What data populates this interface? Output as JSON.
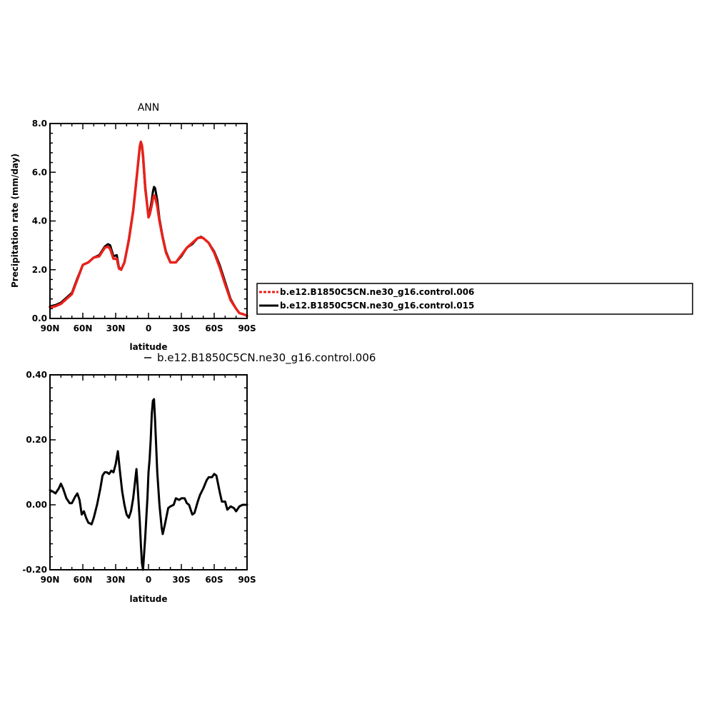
{
  "colors": {
    "run_006": "#e8221b",
    "run_015": "#000000",
    "axes": "#000000"
  },
  "chart_data": [
    {
      "type": "line",
      "title": "ANN",
      "xlabel": "latitude",
      "ylabel": "Precipitation rate (mm/day)",
      "xlim": [
        -90,
        90
      ],
      "ylim": [
        0,
        8
      ],
      "xticks": [
        -90,
        -60,
        -30,
        0,
        30,
        60,
        90
      ],
      "xtick_labels": [
        "90N",
        "60N",
        "30N",
        "0",
        "30S",
        "60S",
        "90S"
      ],
      "yticks": [
        0,
        2,
        4,
        6,
        8
      ],
      "ytick_labels": [
        "0.0",
        "2.0",
        "4.0",
        "6.0",
        "8.0"
      ],
      "legend_placement": "right",
      "x": [
        -90,
        -85,
        -80,
        -75,
        -70,
        -65,
        -60,
        -55,
        -50,
        -45,
        -40,
        -37,
        -35,
        -32,
        -29,
        -27,
        -25,
        -22,
        -18,
        -14,
        -11,
        -9,
        -8,
        -7,
        -6,
        -5,
        -3,
        0,
        1,
        3,
        4,
        5,
        6,
        8,
        10,
        13,
        16,
        20,
        25,
        30,
        35,
        40,
        45,
        48,
        50,
        55,
        60,
        65,
        70,
        75,
        80,
        83,
        86,
        88,
        90
      ],
      "series": [
        {
          "name": "b.e12.B1850C5CN.ne30_g16.control.006",
          "values": [
            0.45,
            0.5,
            0.6,
            0.8,
            1.0,
            1.6,
            2.2,
            2.3,
            2.5,
            2.55,
            2.9,
            2.95,
            2.85,
            2.45,
            2.45,
            2.05,
            2.0,
            2.3,
            3.2,
            4.4,
            5.7,
            6.6,
            7.05,
            7.25,
            7.1,
            6.7,
            5.4,
            4.15,
            4.25,
            4.65,
            4.9,
            5.05,
            5.0,
            4.6,
            4.0,
            3.3,
            2.7,
            2.3,
            2.3,
            2.6,
            2.9,
            3.1,
            3.3,
            3.32,
            3.3,
            3.1,
            2.7,
            2.1,
            1.4,
            0.75,
            0.4,
            0.22,
            0.18,
            0.15,
            0.1
          ]
        },
        {
          "name": "b.e12.B1850C5CN.ne30_g16.control.015",
          "values": [
            0.5,
            0.55,
            0.65,
            0.85,
            1.05,
            1.65,
            2.2,
            2.3,
            2.5,
            2.6,
            2.95,
            3.05,
            3.0,
            2.55,
            2.6,
            2.1,
            2.0,
            2.3,
            3.25,
            4.45,
            5.7,
            6.55,
            7.0,
            7.2,
            7.05,
            6.6,
            5.3,
            4.2,
            4.35,
            4.85,
            5.2,
            5.4,
            5.35,
            4.85,
            4.1,
            3.35,
            2.75,
            2.3,
            2.3,
            2.55,
            2.9,
            3.05,
            3.3,
            3.35,
            3.3,
            3.1,
            2.75,
            2.2,
            1.5,
            0.8,
            0.4,
            0.22,
            0.18,
            0.15,
            0.1
          ]
        }
      ]
    },
    {
      "type": "line",
      "title": "b.e12.B1850C5CN.ne30_g16.control.006",
      "xlabel": "latitude",
      "ylabel": "",
      "xlim": [
        -90,
        90
      ],
      "ylim": [
        -0.2,
        0.4
      ],
      "xticks": [
        -90,
        -60,
        -30,
        0,
        30,
        60,
        90
      ],
      "xtick_labels": [
        "90N",
        "60N",
        "30N",
        "0",
        "30S",
        "60S",
        "90S"
      ],
      "yticks": [
        -0.2,
        0,
        0.2,
        0.4
      ],
      "ytick_labels": [
        "-0.20",
        "0.00",
        "0.20",
        "0.40"
      ],
      "x": [
        -90,
        -87,
        -85,
        -82,
        -80,
        -78,
        -75,
        -72,
        -70,
        -67,
        -65,
        -63,
        -61,
        -59,
        -57,
        -55,
        -52,
        -50,
        -47,
        -44,
        -42,
        -40,
        -38,
        -36,
        -34,
        -32,
        -30,
        -28,
        -26,
        -24,
        -22,
        -20,
        -18,
        -16,
        -14,
        -12,
        -11,
        -10,
        -8,
        -7,
        -6,
        -5,
        -3,
        -1,
        0,
        1,
        2,
        3,
        4,
        5,
        6,
        7,
        8,
        10,
        12,
        13,
        15,
        18,
        20,
        23,
        25,
        28,
        30,
        33,
        35,
        37,
        40,
        42,
        45,
        47,
        50,
        53,
        55,
        58,
        60,
        62,
        65,
        67,
        70,
        72,
        75,
        78,
        80,
        83,
        86,
        88,
        90
      ],
      "series": [
        {
          "values": [
            0.045,
            0.04,
            0.035,
            0.05,
            0.065,
            0.05,
            0.02,
            0.005,
            0.005,
            0.025,
            0.035,
            0.015,
            -0.03,
            -0.02,
            -0.04,
            -0.055,
            -0.06,
            -0.04,
            0.0,
            0.05,
            0.09,
            0.1,
            0.1,
            0.095,
            0.105,
            0.1,
            0.125,
            0.165,
            0.1,
            0.04,
            0.0,
            -0.03,
            -0.04,
            -0.02,
            0.02,
            0.08,
            0.11,
            0.06,
            -0.05,
            -0.12,
            -0.18,
            -0.2,
            -0.1,
            0.02,
            0.1,
            0.14,
            0.2,
            0.28,
            0.32,
            0.325,
            0.26,
            0.18,
            0.1,
            0.0,
            -0.07,
            -0.09,
            -0.06,
            -0.01,
            -0.005,
            0.0,
            0.02,
            0.015,
            0.02,
            0.02,
            0.005,
            0.0,
            -0.03,
            -0.025,
            0.01,
            0.03,
            0.05,
            0.075,
            0.085,
            0.085,
            0.095,
            0.09,
            0.04,
            0.01,
            0.01,
            -0.015,
            -0.005,
            -0.01,
            -0.02,
            -0.005,
            0.0,
            0.0,
            0.0
          ]
        }
      ]
    }
  ]
}
